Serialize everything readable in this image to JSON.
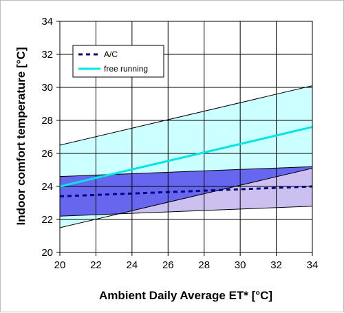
{
  "chart_data": {
    "type": "line",
    "title": "",
    "xlabel": "Ambient Daily Average ET* [°C]",
    "ylabel": "Indoor comfort temperature [°C]",
    "xlim": [
      20,
      34
    ],
    "ylim": [
      20,
      34
    ],
    "xticks": [
      20,
      22,
      24,
      26,
      28,
      30,
      32,
      34
    ],
    "yticks": [
      20,
      22,
      24,
      26,
      28,
      30,
      32,
      34
    ],
    "grid": true,
    "legend_position": "top-left",
    "bands": [
      {
        "id": "free-running-band",
        "color": "#ccffff",
        "upper": [
          [
            20,
            26.5
          ],
          [
            34,
            30.1
          ]
        ],
        "lower": [
          [
            20,
            21.5
          ],
          [
            34,
            25.1
          ]
        ]
      },
      {
        "id": "ac-band",
        "color": "#ccc0f0",
        "upper": [
          [
            20,
            24.6
          ],
          [
            34,
            25.2
          ]
        ],
        "lower": [
          [
            20,
            22.2
          ],
          [
            34,
            22.8
          ]
        ]
      },
      {
        "id": "overlap-band",
        "color": "#6666ee"
      }
    ],
    "series": [
      {
        "name": "A/C",
        "color": "#000080",
        "style": "dashed",
        "x": [
          20,
          34
        ],
        "y": [
          23.4,
          24.0
        ]
      },
      {
        "name": "free running",
        "color": "#00e6e6",
        "style": "solid",
        "x": [
          20,
          34
        ],
        "y": [
          24.0,
          27.6
        ]
      }
    ]
  }
}
